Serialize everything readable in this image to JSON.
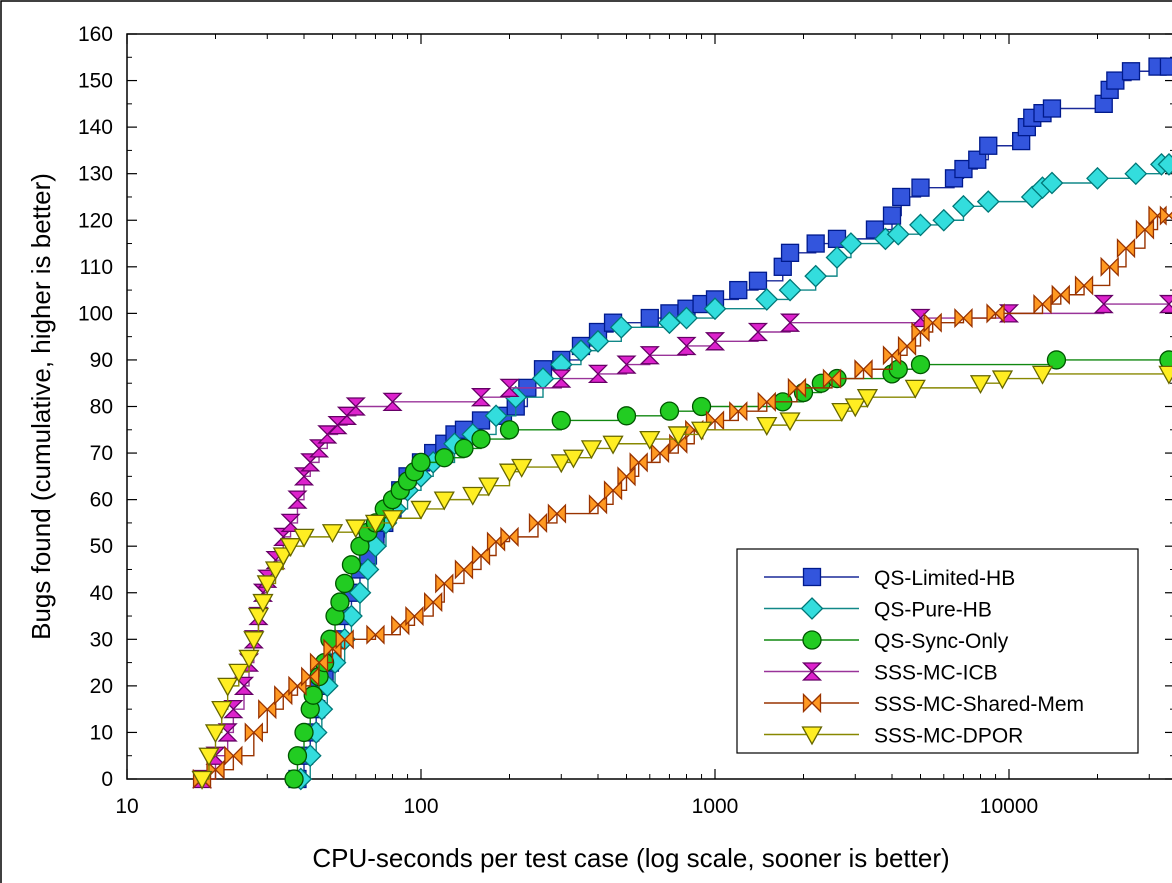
{
  "chart_data": {
    "type": "line",
    "title": "",
    "xlabel": "CPU-seconds per test case (log scale, sooner is better)",
    "ylabel": "Bugs found (cumulative, higher is better)",
    "x_scale": "log",
    "xlim": [
      10,
      35000
    ],
    "ylim": [
      0,
      160
    ],
    "x_ticks": [
      "10",
      "100",
      "1000",
      "10000"
    ],
    "y_ticks": [
      "0",
      "10",
      "20",
      "30",
      "40",
      "50",
      "60",
      "70",
      "80",
      "90",
      "100",
      "110",
      "120",
      "130",
      "140",
      "150",
      "160"
    ],
    "grid": false,
    "legend_position": "bottom-right",
    "series": [
      {
        "name": "QS-Limited-HB",
        "color": "#3355dd",
        "edge": "#001a8c",
        "line": "#1a2a99",
        "marker": "square",
        "points": [
          [
            38,
            0
          ],
          [
            40,
            5
          ],
          [
            42,
            10
          ],
          [
            44,
            15
          ],
          [
            45,
            20
          ],
          [
            47,
            22
          ],
          [
            49,
            25
          ],
          [
            52,
            30
          ],
          [
            55,
            35
          ],
          [
            58,
            40
          ],
          [
            62,
            45
          ],
          [
            66,
            48
          ],
          [
            70,
            52
          ],
          [
            75,
            55
          ],
          [
            80,
            58
          ],
          [
            85,
            62
          ],
          [
            90,
            65
          ],
          [
            100,
            68
          ],
          [
            110,
            70
          ],
          [
            120,
            72
          ],
          [
            130,
            74
          ],
          [
            140,
            75
          ],
          [
            160,
            77
          ],
          [
            190,
            78
          ],
          [
            210,
            80
          ],
          [
            230,
            84
          ],
          [
            260,
            88
          ],
          [
            300,
            90
          ],
          [
            350,
            93
          ],
          [
            400,
            96
          ],
          [
            450,
            98
          ],
          [
            600,
            99
          ],
          [
            700,
            100
          ],
          [
            800,
            101
          ],
          [
            900,
            102
          ],
          [
            1000,
            103
          ],
          [
            1200,
            105
          ],
          [
            1400,
            107
          ],
          [
            1700,
            110
          ],
          [
            1800,
            113
          ],
          [
            2200,
            115
          ],
          [
            2600,
            116
          ],
          [
            3500,
            118
          ],
          [
            4000,
            121
          ],
          [
            4300,
            125
          ],
          [
            5000,
            127
          ],
          [
            6500,
            129
          ],
          [
            7000,
            131
          ],
          [
            7800,
            133
          ],
          [
            8500,
            136
          ],
          [
            11000,
            137
          ],
          [
            11500,
            140
          ],
          [
            12000,
            142
          ],
          [
            13000,
            143
          ],
          [
            14000,
            144
          ],
          [
            21000,
            145
          ],
          [
            22000,
            148
          ],
          [
            23000,
            150
          ],
          [
            26000,
            152
          ],
          [
            32000,
            153
          ],
          [
            35000,
            153
          ]
        ]
      },
      {
        "name": "QS-Pure-HB",
        "color": "#33dddd",
        "edge": "#007777",
        "line": "#118888",
        "marker": "diamond",
        "points": [
          [
            39,
            0
          ],
          [
            42,
            5
          ],
          [
            44,
            10
          ],
          [
            46,
            15
          ],
          [
            48,
            20
          ],
          [
            51,
            25
          ],
          [
            55,
            30
          ],
          [
            58,
            35
          ],
          [
            62,
            40
          ],
          [
            66,
            45
          ],
          [
            70,
            50
          ],
          [
            76,
            55
          ],
          [
            82,
            58
          ],
          [
            90,
            62
          ],
          [
            100,
            65
          ],
          [
            110,
            68
          ],
          [
            130,
            72
          ],
          [
            150,
            74
          ],
          [
            180,
            78
          ],
          [
            210,
            82
          ],
          [
            260,
            86
          ],
          [
            300,
            89
          ],
          [
            350,
            92
          ],
          [
            400,
            94
          ],
          [
            480,
            97
          ],
          [
            700,
            98
          ],
          [
            800,
            99
          ],
          [
            1000,
            101
          ],
          [
            1500,
            103
          ],
          [
            1800,
            105
          ],
          [
            2200,
            108
          ],
          [
            2600,
            112
          ],
          [
            2900,
            115
          ],
          [
            3800,
            116
          ],
          [
            4200,
            117
          ],
          [
            5000,
            119
          ],
          [
            6000,
            120
          ],
          [
            7000,
            123
          ],
          [
            8500,
            124
          ],
          [
            12000,
            125
          ],
          [
            13000,
            127
          ],
          [
            14000,
            128
          ],
          [
            20000,
            129
          ],
          [
            27000,
            130
          ],
          [
            33000,
            132
          ],
          [
            35000,
            132
          ]
        ]
      },
      {
        "name": "QS-Sync-Only",
        "color": "#22cc22",
        "edge": "#005500",
        "line": "#118811",
        "marker": "circle",
        "points": [
          [
            37,
            0
          ],
          [
            38,
            5
          ],
          [
            40,
            10
          ],
          [
            42,
            15
          ],
          [
            43,
            18
          ],
          [
            45,
            22
          ],
          [
            47,
            25
          ],
          [
            49,
            30
          ],
          [
            51,
            35
          ],
          [
            53,
            38
          ],
          [
            55,
            42
          ],
          [
            58,
            46
          ],
          [
            62,
            50
          ],
          [
            66,
            53
          ],
          [
            70,
            55
          ],
          [
            75,
            58
          ],
          [
            80,
            60
          ],
          [
            85,
            62
          ],
          [
            90,
            64
          ],
          [
            95,
            66
          ],
          [
            100,
            68
          ],
          [
            120,
            69
          ],
          [
            140,
            71
          ],
          [
            160,
            73
          ],
          [
            200,
            75
          ],
          [
            300,
            77
          ],
          [
            500,
            78
          ],
          [
            700,
            79
          ],
          [
            900,
            80
          ],
          [
            1700,
            81
          ],
          [
            2000,
            83
          ],
          [
            2300,
            85
          ],
          [
            2600,
            86
          ],
          [
            4000,
            87
          ],
          [
            4200,
            88
          ],
          [
            5000,
            89
          ],
          [
            14500,
            90
          ],
          [
            35000,
            90
          ]
        ]
      },
      {
        "name": "SSS-MC-ICB",
        "color": "#dd22cc",
        "edge": "#660066",
        "line": "#993399",
        "marker": "hourglass",
        "points": [
          [
            18,
            0
          ],
          [
            20,
            5
          ],
          [
            22,
            10
          ],
          [
            23,
            15
          ],
          [
            25,
            20
          ],
          [
            26,
            25
          ],
          [
            27,
            30
          ],
          [
            28,
            35
          ],
          [
            29,
            40
          ],
          [
            30,
            43
          ],
          [
            32,
            47
          ],
          [
            34,
            52
          ],
          [
            36,
            55
          ],
          [
            38,
            60
          ],
          [
            40,
            65
          ],
          [
            42,
            68
          ],
          [
            45,
            71
          ],
          [
            48,
            74
          ],
          [
            52,
            76
          ],
          [
            56,
            78
          ],
          [
            60,
            80
          ],
          [
            80,
            81
          ],
          [
            160,
            82
          ],
          [
            200,
            84
          ],
          [
            300,
            86
          ],
          [
            400,
            87
          ],
          [
            500,
            89
          ],
          [
            600,
            91
          ],
          [
            800,
            93
          ],
          [
            1000,
            94
          ],
          [
            1400,
            96
          ],
          [
            1800,
            98
          ],
          [
            5000,
            99
          ],
          [
            10000,
            100
          ],
          [
            21000,
            102
          ],
          [
            35000,
            102
          ]
        ]
      },
      {
        "name": "SSS-MC-Shared-Mem",
        "color": "#ff9922",
        "edge": "#993300",
        "line": "#993300",
        "marker": "bowtie",
        "points": [
          [
            18,
            0
          ],
          [
            20,
            2
          ],
          [
            23,
            5
          ],
          [
            27,
            10
          ],
          [
            30,
            15
          ],
          [
            34,
            18
          ],
          [
            38,
            20
          ],
          [
            42,
            22
          ],
          [
            45,
            25
          ],
          [
            50,
            28
          ],
          [
            55,
            30
          ],
          [
            70,
            31
          ],
          [
            85,
            33
          ],
          [
            95,
            35
          ],
          [
            110,
            38
          ],
          [
            120,
            42
          ],
          [
            140,
            45
          ],
          [
            160,
            48
          ],
          [
            180,
            51
          ],
          [
            200,
            52
          ],
          [
            250,
            55
          ],
          [
            290,
            57
          ],
          [
            400,
            59
          ],
          [
            450,
            62
          ],
          [
            500,
            65
          ],
          [
            550,
            68
          ],
          [
            650,
            70
          ],
          [
            750,
            72
          ],
          [
            850,
            75
          ],
          [
            1000,
            77
          ],
          [
            1200,
            79
          ],
          [
            1500,
            81
          ],
          [
            1900,
            84
          ],
          [
            2500,
            86
          ],
          [
            3200,
            88
          ],
          [
            4000,
            91
          ],
          [
            4500,
            93
          ],
          [
            5000,
            96
          ],
          [
            5500,
            98
          ],
          [
            7000,
            99
          ],
          [
            9000,
            100
          ],
          [
            13000,
            102
          ],
          [
            15000,
            104
          ],
          [
            18000,
            106
          ],
          [
            22000,
            110
          ],
          [
            25000,
            114
          ],
          [
            29000,
            118
          ],
          [
            32000,
            121
          ],
          [
            35000,
            121
          ]
        ]
      },
      {
        "name": "SSS-MC-DPOR",
        "color": "#ffee22",
        "edge": "#666600",
        "line": "#888800",
        "marker": "triangle-down",
        "points": [
          [
            18,
            0
          ],
          [
            19,
            5
          ],
          [
            20,
            10
          ],
          [
            21,
            15
          ],
          [
            22,
            20
          ],
          [
            24,
            23
          ],
          [
            26,
            26
          ],
          [
            27,
            30
          ],
          [
            28,
            35
          ],
          [
            29,
            38
          ],
          [
            30,
            42
          ],
          [
            32,
            45
          ],
          [
            34,
            48
          ],
          [
            36,
            50
          ],
          [
            40,
            52
          ],
          [
            50,
            53
          ],
          [
            60,
            54
          ],
          [
            70,
            55
          ],
          [
            80,
            56
          ],
          [
            100,
            58
          ],
          [
            120,
            60
          ],
          [
            150,
            61
          ],
          [
            170,
            63
          ],
          [
            200,
            66
          ],
          [
            220,
            67
          ],
          [
            300,
            68
          ],
          [
            330,
            69
          ],
          [
            380,
            71
          ],
          [
            450,
            72
          ],
          [
            600,
            73
          ],
          [
            750,
            74
          ],
          [
            900,
            75
          ],
          [
            1500,
            76
          ],
          [
            1800,
            77
          ],
          [
            2700,
            79
          ],
          [
            3000,
            80
          ],
          [
            3300,
            82
          ],
          [
            4800,
            84
          ],
          [
            8000,
            85
          ],
          [
            9500,
            86
          ],
          [
            13000,
            87
          ],
          [
            35000,
            87
          ]
        ]
      }
    ]
  }
}
